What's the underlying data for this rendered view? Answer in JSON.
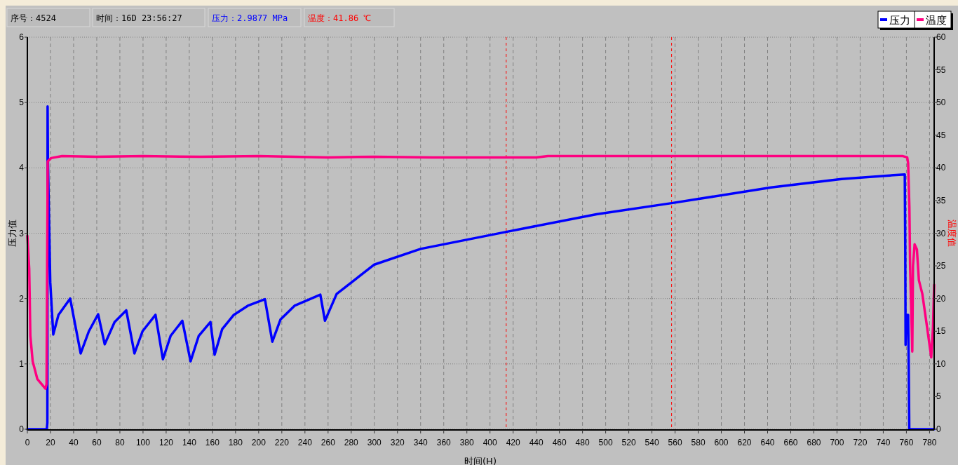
{
  "chart_data": {
    "type": "line",
    "xlabel": "时间(H)",
    "ylabel": "压力值",
    "y2label": "温度值",
    "annotations": [
      "序号：4524",
      "时间：16D 23:56:27",
      "压力：2.9877 MPa",
      "温度：41.86 ℃"
    ],
    "xlim": [
      0,
      784
    ],
    "xticks": [
      0,
      20,
      40,
      60,
      80,
      100,
      120,
      140,
      160,
      180,
      200,
      220,
      240,
      260,
      280,
      300,
      320,
      340,
      360,
      380,
      400,
      420,
      440,
      460,
      480,
      500,
      520,
      540,
      560,
      580,
      600,
      620,
      640,
      660,
      680,
      700,
      720,
      740,
      760,
      780
    ],
    "ylim": [
      0,
      6
    ],
    "yticks": [
      0,
      1,
      2,
      3,
      4,
      5,
      6
    ],
    "y2lim": [
      0,
      60
    ],
    "y2ticks": [
      0,
      5,
      10,
      15,
      20,
      25,
      30,
      35,
      40,
      45,
      50,
      55,
      60
    ],
    "grid": true,
    "legend": "top right",
    "marker": "none",
    "line_style": "solid",
    "ref_lines": [
      {
        "axis": "x",
        "value": 414,
        "color": "#ff0000",
        "line_style": "dashed"
      },
      {
        "axis": "x",
        "value": 557,
        "color": "#ff0000",
        "line_style": "dashed"
      }
    ],
    "series": [
      {
        "name": "压力",
        "color": "#0000ff",
        "x": [
          0,
          16.8,
          17.3,
          17.5,
          17.8,
          19.8,
          22.4,
          26.9,
          37,
          46.1,
          53.2,
          61.2,
          66.9,
          75.4,
          85.5,
          92.6,
          99.6,
          110.8,
          117.2,
          123.9,
          134,
          141.1,
          148.2,
          158.3,
          161.9,
          168.4,
          178.5,
          190.6,
          205.4,
          211.8,
          218.9,
          231,
          253.3,
          257.3,
          267.4,
          300,
          340,
          414,
          492,
          557,
          643,
          704,
          758.6,
          759,
          759.3,
          760,
          761.5,
          762,
          762.5,
          784
        ],
        "values": [
          0,
          0,
          0.1,
          4.94,
          4.1,
          2.25,
          1.45,
          1.75,
          2.0,
          1.16,
          1.5,
          1.76,
          1.3,
          1.64,
          1.82,
          1.16,
          1.5,
          1.75,
          1.07,
          1.43,
          1.66,
          1.04,
          1.43,
          1.64,
          1.14,
          1.53,
          1.75,
          1.89,
          1.99,
          1.34,
          1.68,
          1.89,
          2.06,
          1.66,
          2.07,
          2.52,
          2.76,
          3.02,
          3.29,
          3.46,
          3.7,
          3.83,
          3.9,
          2.79,
          1.29,
          1.75,
          1.75,
          1.0,
          0,
          0
        ]
      },
      {
        "name": "温度",
        "color": "#ff0080",
        "axis": "y2",
        "x": [
          0,
          1.6,
          2.6,
          4.6,
          8.6,
          15.6,
          16.6,
          17.6,
          20.6,
          30,
          60,
          100,
          150,
          200,
          260,
          300,
          350,
          400,
          440,
          450,
          500,
          600,
          700,
          757,
          760.7,
          761.5,
          762.6,
          763.2,
          765.1,
          765.7,
          767.1,
          769.1,
          770.8,
          773.8,
          777.9,
          781.5,
          783,
          784
        ],
        "values": [
          29.6,
          24.6,
          14.3,
          10.4,
          7.7,
          6.2,
          6.9,
          41.0,
          41.5,
          41.8,
          41.7,
          41.8,
          41.7,
          41.8,
          41.6,
          41.7,
          41.6,
          41.6,
          41.6,
          41.8,
          41.8,
          41.8,
          41.8,
          41.8,
          41.6,
          40.7,
          33.9,
          25.0,
          11.9,
          25.0,
          28.3,
          27.5,
          22.8,
          20.7,
          15.6,
          11.0,
          15.6,
          22.1
        ]
      }
    ]
  }
}
